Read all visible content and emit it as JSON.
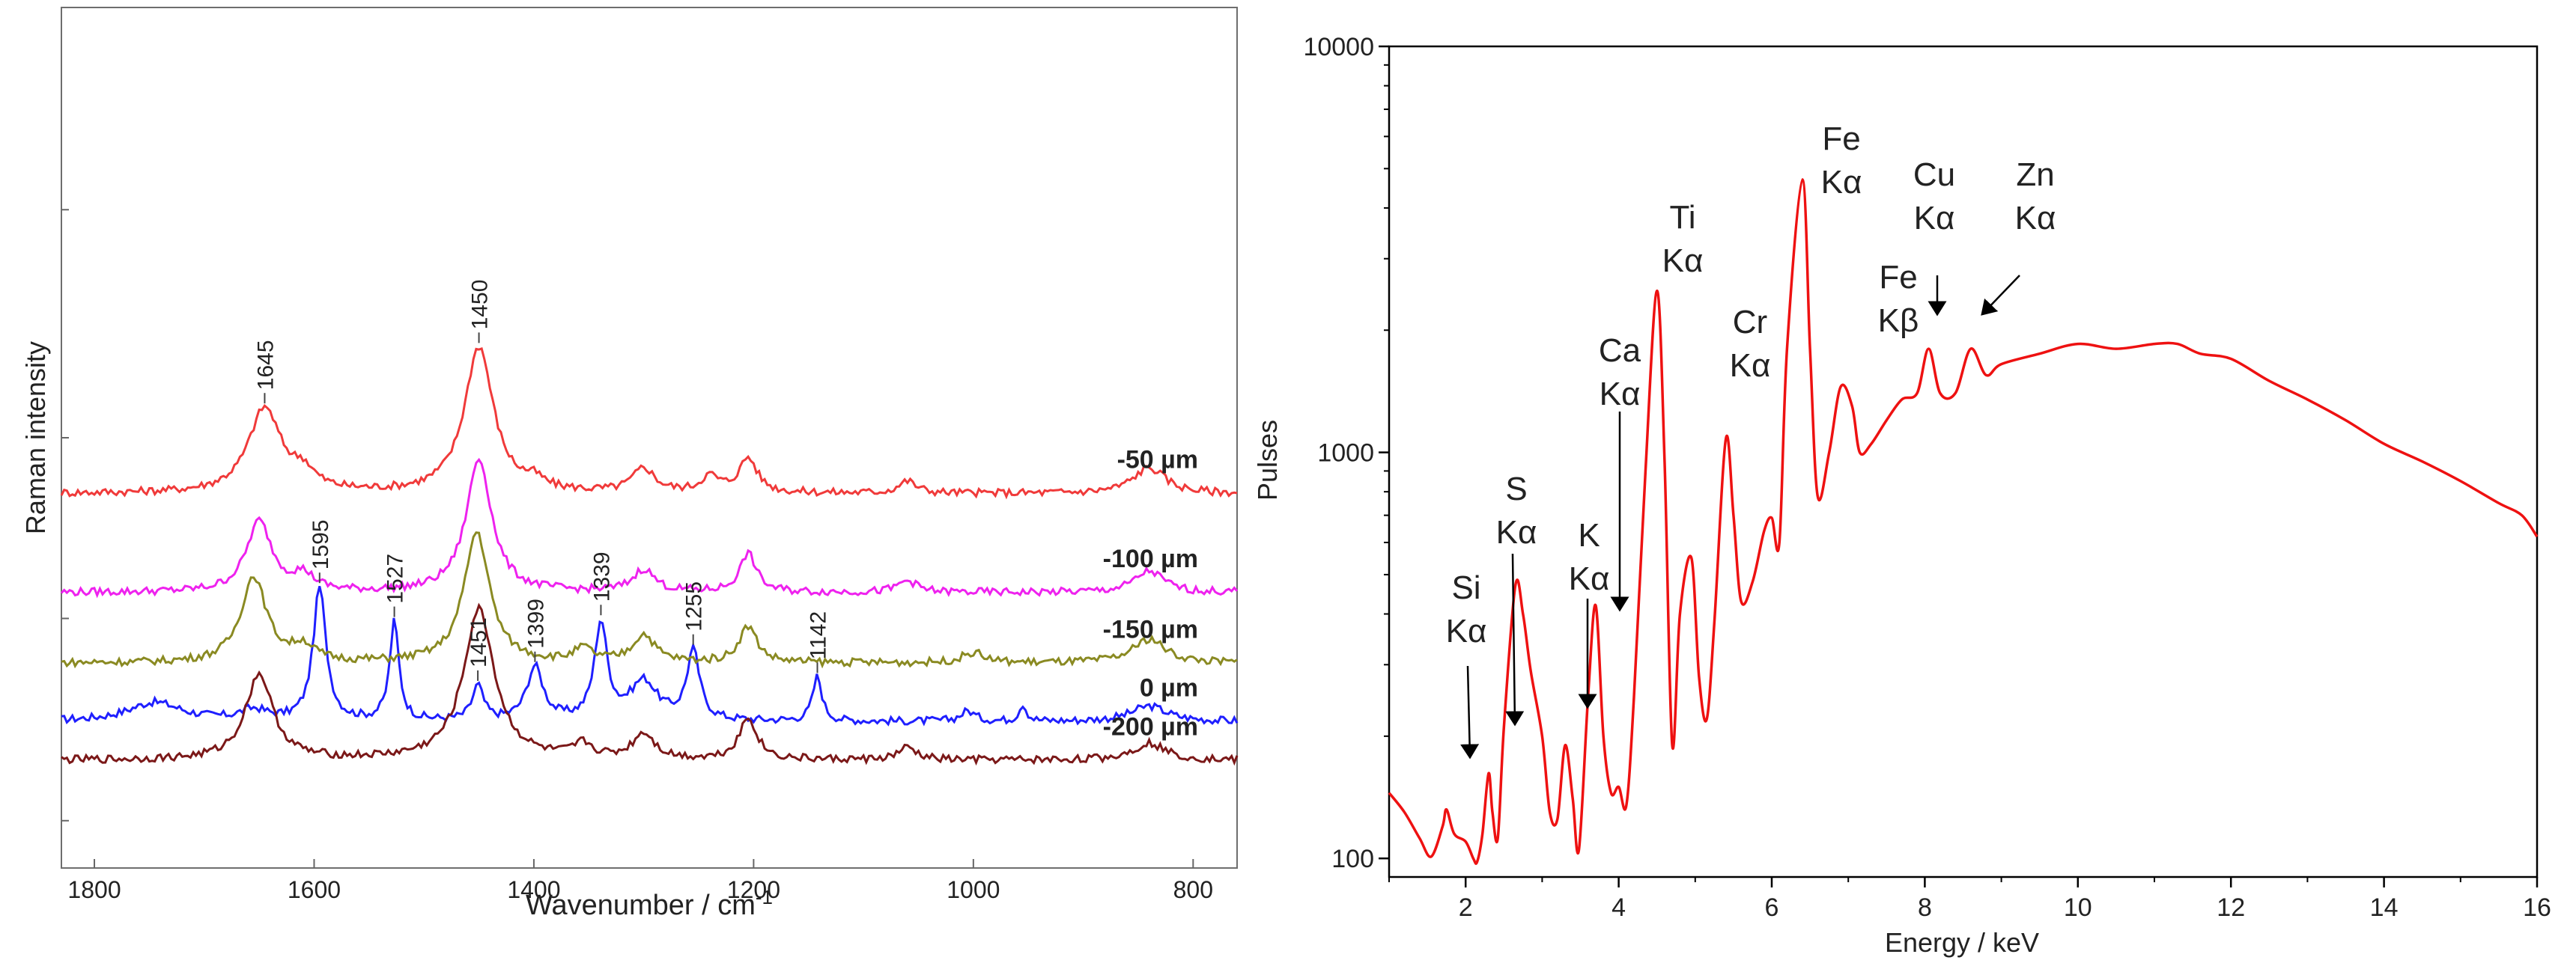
{
  "chart_data": [
    {
      "type": "line",
      "title": "",
      "xlabel": "Wavenumber / cm",
      "xlabel_superscript": "-1",
      "ylabel": "Raman intensity",
      "xlim": [
        1830,
        760
      ],
      "x_reversed": true,
      "x_ticks": [
        1800,
        1600,
        1400,
        1200,
        1000,
        800
      ],
      "grid": false,
      "series": [
        {
          "name": "0 µm",
          "color": "#1f1fff",
          "baseline": 0.83,
          "peaks": [
            {
              "x": 1745,
              "h": 0.022,
              "w": 30
            },
            {
              "x": 1655,
              "h": 0.012,
              "w": 15
            },
            {
              "x": 1595,
              "h": 0.155,
              "w": 7
            },
            {
              "x": 1527,
              "h": 0.115,
              "w": 5
            },
            {
              "x": 1451,
              "h": 0.04,
              "w": 6
            },
            {
              "x": 1399,
              "h": 0.062,
              "w": 9
            },
            {
              "x": 1339,
              "h": 0.112,
              "w": 7
            },
            {
              "x": 1300,
              "h": 0.045,
              "w": 15
            },
            {
              "x": 1255,
              "h": 0.08,
              "w": 7
            },
            {
              "x": 1142,
              "h": 0.052,
              "w": 5
            },
            {
              "x": 1005,
              "h": 0.012,
              "w": 8
            },
            {
              "x": 955,
              "h": 0.02,
              "w": 4
            },
            {
              "x": 840,
              "h": 0.018,
              "w": 20
            }
          ]
        },
        {
          "name": "-50 µm",
          "color": "#f03a3a",
          "baseline": 0.565,
          "peaks": [
            {
              "x": 1645,
              "h": 0.098,
              "w": 18
            },
            {
              "x": 1610,
              "h": 0.02,
              "w": 12
            },
            {
              "x": 1450,
              "h": 0.17,
              "w": 16
            },
            {
              "x": 1400,
              "h": 0.01,
              "w": 10
            },
            {
              "x": 1300,
              "h": 0.028,
              "w": 12
            },
            {
              "x": 1205,
              "h": 0.04,
              "w": 10
            },
            {
              "x": 1240,
              "h": 0.018,
              "w": 10
            },
            {
              "x": 1060,
              "h": 0.014,
              "w": 10
            },
            {
              "x": 840,
              "h": 0.03,
              "w": 18
            }
          ]
        },
        {
          "name": "-100 µm",
          "color": "#ee22ee",
          "baseline": 0.68,
          "peaks": [
            {
              "x": 1650,
              "h": 0.082,
              "w": 14
            },
            {
              "x": 1610,
              "h": 0.018,
              "w": 12
            },
            {
              "x": 1450,
              "h": 0.155,
              "w": 14
            },
            {
              "x": 1300,
              "h": 0.026,
              "w": 12
            },
            {
              "x": 1205,
              "h": 0.045,
              "w": 9
            },
            {
              "x": 1060,
              "h": 0.014,
              "w": 10
            },
            {
              "x": 840,
              "h": 0.025,
              "w": 16
            }
          ]
        },
        {
          "name": "-150 µm",
          "color": "#8a8a22",
          "baseline": 0.762,
          "peaks": [
            {
              "x": 1655,
              "h": 0.1,
              "w": 14
            },
            {
              "x": 1610,
              "h": 0.018,
              "w": 12
            },
            {
              "x": 1452,
              "h": 0.152,
              "w": 14
            },
            {
              "x": 1355,
              "h": 0.015,
              "w": 10
            },
            {
              "x": 1300,
              "h": 0.032,
              "w": 12
            },
            {
              "x": 1205,
              "h": 0.042,
              "w": 10
            },
            {
              "x": 1000,
              "h": 0.012,
              "w": 12
            },
            {
              "x": 840,
              "h": 0.028,
              "w": 18
            }
          ]
        },
        {
          "name": "-200 µm",
          "color": "#7b1818",
          "baseline": 0.875,
          "peaks": [
            {
              "x": 1650,
              "h": 0.1,
              "w": 15
            },
            {
              "x": 1450,
              "h": 0.175,
              "w": 17
            },
            {
              "x": 1355,
              "h": 0.016,
              "w": 10
            },
            {
              "x": 1300,
              "h": 0.03,
              "w": 12
            },
            {
              "x": 1205,
              "h": 0.048,
              "w": 10
            },
            {
              "x": 1060,
              "h": 0.014,
              "w": 10
            },
            {
              "x": 840,
              "h": 0.02,
              "w": 18
            }
          ]
        }
      ],
      "peak_labels": [
        {
          "series": 0,
          "x": 1595,
          "text": "1595"
        },
        {
          "series": 0,
          "x": 1527,
          "text": "1527"
        },
        {
          "series": 0,
          "x": 1451,
          "text": "1451"
        },
        {
          "series": 0,
          "x": 1399,
          "text": "1399"
        },
        {
          "series": 0,
          "x": 1339,
          "text": "1339"
        },
        {
          "series": 0,
          "x": 1255,
          "text": "1255"
        },
        {
          "series": 0,
          "x": 1142,
          "text": "1142"
        },
        {
          "series": 1,
          "x": 1645,
          "text": "1645"
        },
        {
          "series": 1,
          "x": 1450,
          "text": "1450"
        }
      ]
    },
    {
      "type": "line",
      "title": "",
      "xlabel": "Energy / keV",
      "ylabel": "Pulses",
      "xlim": [
        1,
        16
      ],
      "ylim": [
        90,
        10000
      ],
      "y_scale": "log",
      "x_ticks": [
        2,
        4,
        6,
        8,
        10,
        12,
        14,
        16
      ],
      "y_ticks": [
        100,
        1000,
        10000
      ],
      "y_tick_labels": [
        "100",
        "1000",
        "10000"
      ],
      "grid": false,
      "color": "#ee1111",
      "x": [
        1.0,
        1.2,
        1.4,
        1.55,
        1.7,
        1.75,
        1.85,
        2.0,
        2.1,
        2.15,
        2.22,
        2.3,
        2.35,
        2.42,
        2.5,
        2.65,
        2.75,
        2.85,
        3.0,
        3.1,
        3.2,
        3.3,
        3.4,
        3.48,
        3.6,
        3.7,
        3.8,
        3.9,
        4.0,
        4.1,
        4.2,
        4.35,
        4.5,
        4.6,
        4.7,
        4.8,
        4.95,
        5.05,
        5.15,
        5.25,
        5.4,
        5.5,
        5.6,
        5.75,
        5.9,
        6.0,
        6.1,
        6.2,
        6.4,
        6.5,
        6.6,
        6.75,
        6.9,
        7.05,
        7.15,
        7.3,
        7.5,
        7.7,
        7.9,
        8.05,
        8.2,
        8.4,
        8.6,
        8.8,
        9.0,
        9.5,
        10.0,
        10.5,
        11.0,
        11.3,
        11.6,
        12.0,
        12.5,
        13.0,
        13.5,
        14.0,
        14.5,
        15.0,
        15.5,
        15.8,
        16.0
      ],
      "y": [
        145,
        130,
        112,
        101,
        120,
        132,
        115,
        110,
        100,
        98,
        115,
        162,
        130,
        112,
        210,
        470,
        400,
        290,
        200,
        130,
        125,
        190,
        140,
        105,
        250,
        420,
        200,
        145,
        150,
        135,
        250,
        900,
        2500,
        950,
        190,
        400,
        550,
        280,
        220,
        380,
        1080,
        700,
        430,
        480,
        640,
        690,
        600,
        1800,
        4700,
        1800,
        780,
        1000,
        1450,
        1300,
        1000,
        1050,
        1200,
        1350,
        1400,
        1800,
        1400,
        1400,
        1800,
        1550,
        1650,
        1750,
        1850,
        1800,
        1850,
        1850,
        1750,
        1700,
        1500,
        1350,
        1200,
        1050,
        950,
        850,
        750,
        700,
        620
      ],
      "annotations": [
        {
          "lines": [
            "Si",
            "Kα"
          ],
          "x": 1.8,
          "y": 127
        },
        {
          "lines": [
            "S",
            "Kα"
          ],
          "x": 2.3,
          "y": 155
        },
        {
          "lines": [
            "K",
            "Kα"
          ],
          "x": 3.3,
          "y": 182
        },
        {
          "lines": [
            "Ca",
            "Kα"
          ],
          "x": 3.7,
          "y": 390
        },
        {
          "lines": [
            "Ti",
            "Kα"
          ],
          "x": 4.5,
          "y": 2700
        },
        {
          "lines": [
            "Cr",
            "Kα"
          ],
          "x": 5.4,
          "y": 1150
        },
        {
          "lines": [
            "Fe",
            "Kα"
          ],
          "x": 6.4,
          "y": 5000
        },
        {
          "lines": [
            "Fe",
            "Kβ"
          ],
          "x": 7.05,
          "y": 1550
        },
        {
          "lines": [
            "Cu",
            "Kα"
          ],
          "x": 8.05,
          "y": 1900
        },
        {
          "lines": [
            "Zn",
            "Kα"
          ],
          "x": 8.6,
          "y": 1900
        }
      ]
    }
  ]
}
